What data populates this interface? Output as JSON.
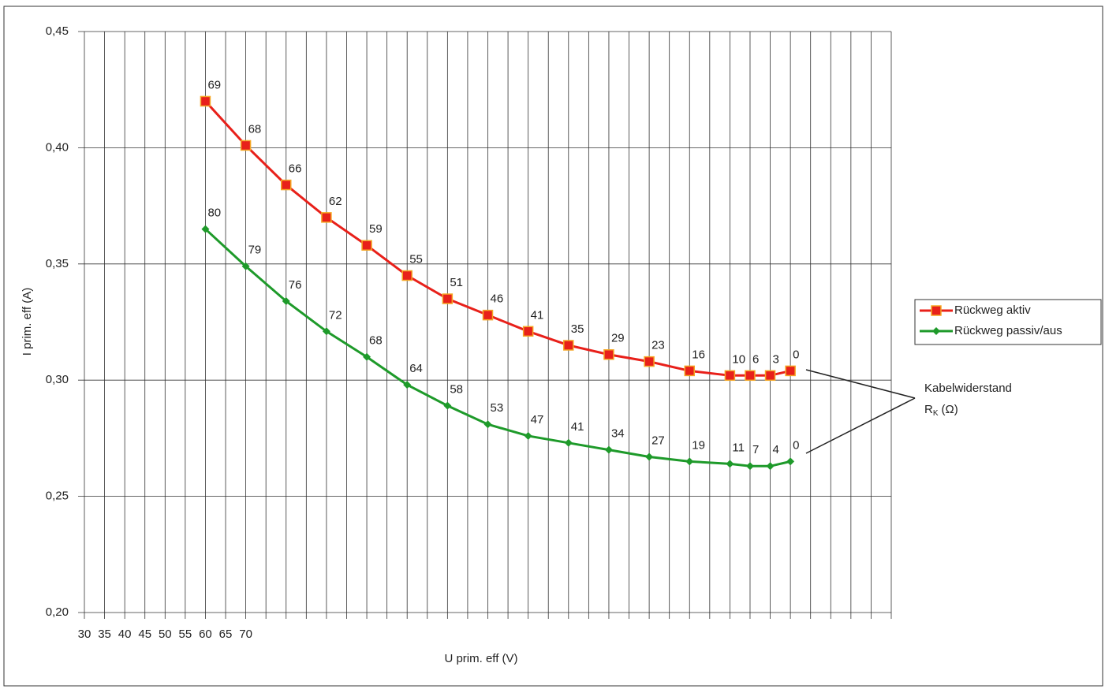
{
  "chart_data": {
    "type": "line",
    "x_label": "U prim. eff (V)",
    "y_label": "I prim. eff (A)",
    "x": [
      60,
      70,
      80,
      90,
      100,
      110,
      120,
      130,
      140,
      150,
      160,
      170,
      180,
      190,
      195,
      200,
      205
    ],
    "series": [
      {
        "name": "Rückweg aktiv",
        "color": "#e8201a",
        "marker": "square",
        "values": [
          0.42,
          0.401,
          0.384,
          0.37,
          0.358,
          0.345,
          0.335,
          0.328,
          0.321,
          0.315,
          0.311,
          0.308,
          0.304,
          0.302,
          0.302,
          0.302,
          0.304
        ],
        "labels": [
          "69",
          "68",
          "66",
          "62",
          "59",
          "55",
          "51",
          "46",
          "41",
          "35",
          "29",
          "23",
          "16",
          "10",
          "6",
          "3",
          "0"
        ]
      },
      {
        "name": "Rückweg passiv/aus",
        "color": "#1e9a2a",
        "marker": "diamond",
        "values": [
          0.365,
          0.349,
          0.334,
          0.321,
          0.31,
          0.298,
          0.289,
          0.281,
          0.276,
          0.273,
          0.27,
          0.267,
          0.265,
          0.264,
          0.263,
          0.263,
          0.265
        ],
        "labels": [
          "80",
          "79",
          "76",
          "72",
          "68",
          "64",
          "58",
          "53",
          "47",
          "41",
          "34",
          "27",
          "19",
          "11",
          "7",
          "4",
          "0"
        ]
      }
    ],
    "xlim": [
      30,
      230
    ],
    "xticks": [
      30,
      35,
      40,
      45,
      50,
      55,
      60,
      65,
      70
    ],
    "xgrid": 5,
    "ylim": [
      0.2,
      0.45
    ],
    "yticks": [
      {
        "value": 0.2,
        "label": "0,20"
      },
      {
        "value": 0.25,
        "label": "0,25"
      },
      {
        "value": 0.3,
        "label": "0,30"
      },
      {
        "value": 0.35,
        "label": "0,35"
      },
      {
        "value": 0.4,
        "label": "0,40"
      },
      {
        "value": 0.45,
        "label": "0,45"
      }
    ],
    "grid": true,
    "legend": "right",
    "annotation": {
      "text": "Kabelwiderstand",
      "symbol": "R",
      "subscript": "K",
      "unit": "(Ω)"
    }
  }
}
